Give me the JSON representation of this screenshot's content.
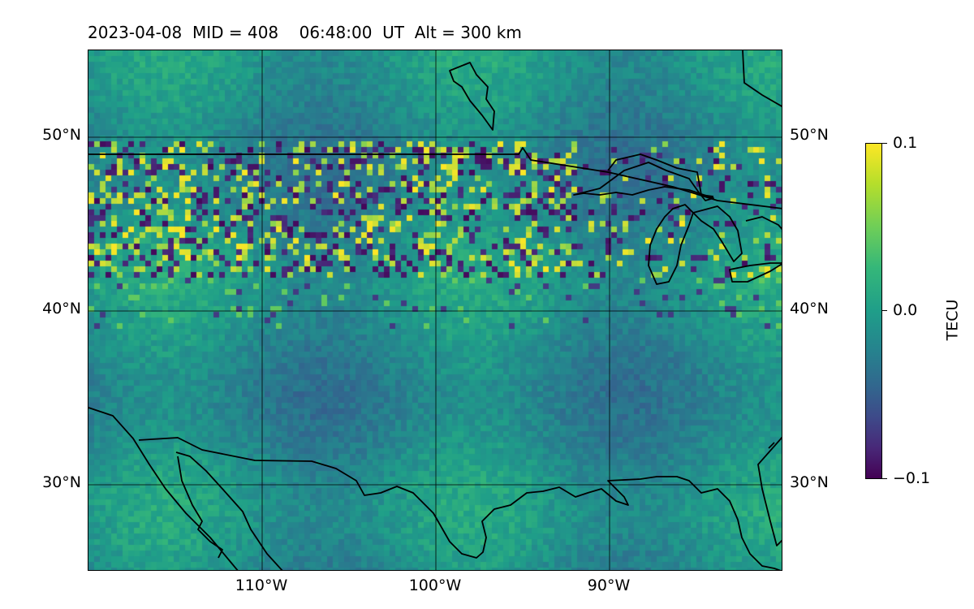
{
  "header": {
    "date": "2023-04-08",
    "mid": "MID = 408",
    "time": "06:48:00",
    "ut": "UT",
    "alt": "Alt = 300 km"
  },
  "map": {
    "lon_range": [
      -119,
      -79
    ],
    "lat_range": [
      25,
      55
    ],
    "grid_lons": [
      -110,
      -100,
      -90
    ],
    "grid_lats": [
      30,
      40,
      50
    ],
    "lat_labels_left": [
      "50°N",
      "40°N",
      "30°N"
    ],
    "lat_labels_right": [
      "50°N",
      "40°N",
      "30°N"
    ],
    "lon_labels": [
      "110°W",
      "100°W",
      "90°W"
    ],
    "disturbance_band_lat": [
      42,
      50
    ]
  },
  "colorbar": {
    "title": "TECU",
    "ticks": [
      "0.1",
      "0.0",
      "−0.1"
    ],
    "vmin": -0.1,
    "vmax": 0.1,
    "colormap": "viridis"
  }
}
